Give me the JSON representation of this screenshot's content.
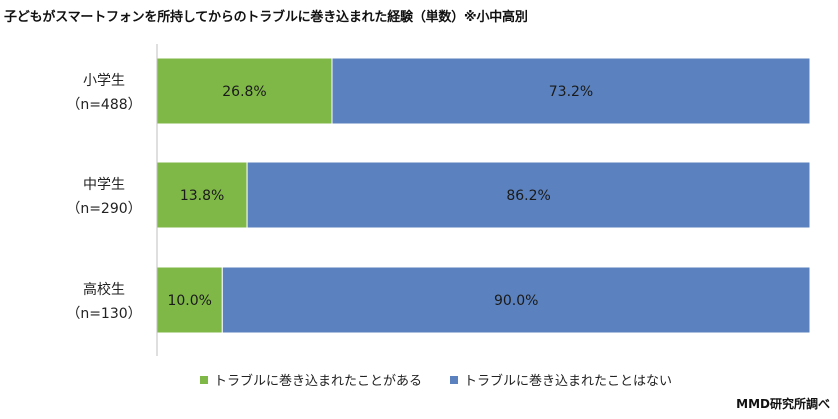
{
  "chart_data": {
    "type": "bar",
    "orientation": "horizontal",
    "stacked": true,
    "percent": true,
    "title": "子どもがスマートフォンを所持してからのトラブルに巻き込まれた経験（単数）※小中高別",
    "categories": [
      {
        "name": "小学生",
        "n": "（n=488）"
      },
      {
        "name": "中学生",
        "n": "（n=290）"
      },
      {
        "name": "高校生",
        "n": "（n=130）"
      }
    ],
    "series": [
      {
        "name": "トラブルに巻き込まれたことがある",
        "color": "#80b848",
        "values": [
          26.8,
          13.8,
          10.0
        ],
        "labels": [
          "26.8%",
          "13.8%",
          "10.0%"
        ]
      },
      {
        "name": "トラブルに巻き込まれたことはない",
        "color": "#5b82be",
        "values": [
          73.2,
          86.2,
          90.0
        ],
        "labels": [
          "73.2%",
          "86.2%",
          "90.0%"
        ]
      }
    ],
    "xlim": [
      0,
      100
    ],
    "grid": false,
    "legend_position": "bottom"
  },
  "source": "MMD研究所調べ"
}
